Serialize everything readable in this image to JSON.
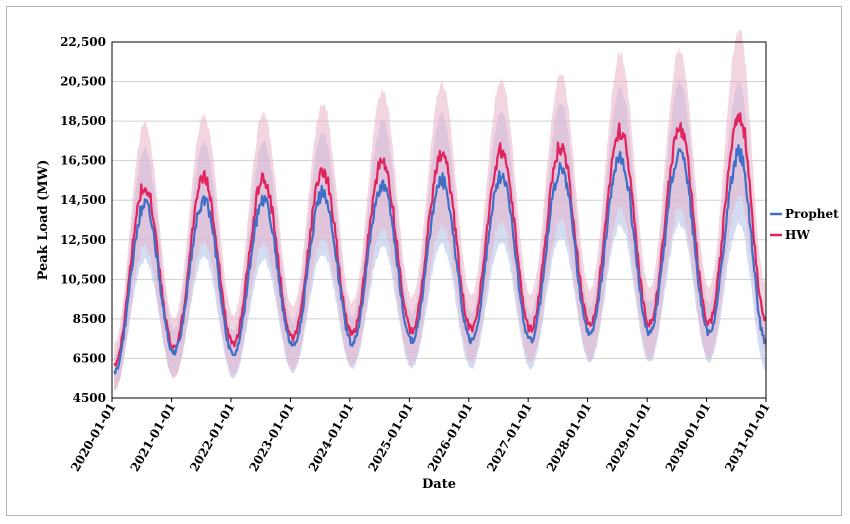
{
  "chart_data": {
    "type": "line",
    "title": "",
    "xlabel": "Date",
    "ylabel": "Peak Load (MW)",
    "ylim": [
      4500,
      22500
    ],
    "yticks": [
      4500,
      6500,
      8500,
      10500,
      12500,
      14500,
      16500,
      18500,
      20500,
      22500
    ],
    "ytick_labels": [
      "4500",
      "6500",
      "8500",
      "10,500",
      "12,500",
      "14,500",
      "16,500",
      "18,500",
      "20,500",
      "22,500"
    ],
    "xlim": [
      "2020-01-01",
      "2031-01-01"
    ],
    "xtick_labels": [
      "2020-01-01",
      "2021-01-01",
      "2022-01-01",
      "2023-01-01",
      "2024-01-01",
      "2025-01-01",
      "2026-01-01",
      "2027-01-01",
      "2028-01-01",
      "2029-01-01",
      "2030-01-01",
      "2031-01-01"
    ],
    "grid": "horizontal",
    "legend": "right",
    "series": [
      {
        "name": "Prophet",
        "color": "#3f6fc6",
        "band_color": "#aebfe6",
        "x": [
          "2020-01-15",
          "2020-07-20",
          "2021-01-15",
          "2021-07-20",
          "2022-01-15",
          "2022-07-20",
          "2023-01-15",
          "2023-07-20",
          "2024-01-15",
          "2024-07-20",
          "2025-01-15",
          "2025-07-20",
          "2026-01-15",
          "2026-07-20",
          "2027-01-15",
          "2027-07-20",
          "2028-01-15",
          "2028-07-20",
          "2029-01-15",
          "2029-07-20",
          "2030-01-15",
          "2030-07-20",
          "2030-12-28"
        ],
        "y": [
          5800,
          14300,
          6800,
          14500,
          6700,
          14500,
          7100,
          14900,
          7300,
          15300,
          7400,
          15500,
          7400,
          15700,
          7400,
          16100,
          7700,
          16700,
          7800,
          16900,
          7800,
          16900,
          7400
        ],
        "band_halfwidth": [
          900,
          2800,
          1200,
          2900,
          1200,
          3000,
          1300,
          3100,
          1300,
          3200,
          1400,
          3300,
          1400,
          3300,
          1400,
          3400,
          1400,
          3500,
          1500,
          3600,
          1500,
          3600,
          1400
        ]
      },
      {
        "name": "HW",
        "color": "#e2245e",
        "band_color": "#eab2c8",
        "x": [
          "2020-01-15",
          "2020-07-20",
          "2021-01-15",
          "2021-07-20",
          "2022-01-15",
          "2022-07-20",
          "2023-01-15",
          "2023-07-20",
          "2024-01-15",
          "2024-07-20",
          "2025-01-15",
          "2025-07-20",
          "2026-01-15",
          "2026-07-20",
          "2027-01-15",
          "2027-07-20",
          "2028-01-15",
          "2028-07-20",
          "2029-01-15",
          "2029-07-20",
          "2030-01-15",
          "2030-07-20",
          "2030-12-28"
        ],
        "y": [
          6100,
          15300,
          7000,
          15600,
          7200,
          15600,
          7500,
          16000,
          7700,
          16500,
          7900,
          16800,
          8000,
          17000,
          8000,
          17200,
          8200,
          18000,
          8300,
          18100,
          8300,
          18900,
          8600
        ],
        "band_halfwidth": [
          1200,
          3100,
          1500,
          3200,
          1500,
          3300,
          1600,
          3400,
          1600,
          3500,
          1700,
          3600,
          1700,
          3600,
          1700,
          3700,
          1800,
          3900,
          1800,
          4000,
          1800,
          4200,
          1700
        ]
      }
    ]
  }
}
